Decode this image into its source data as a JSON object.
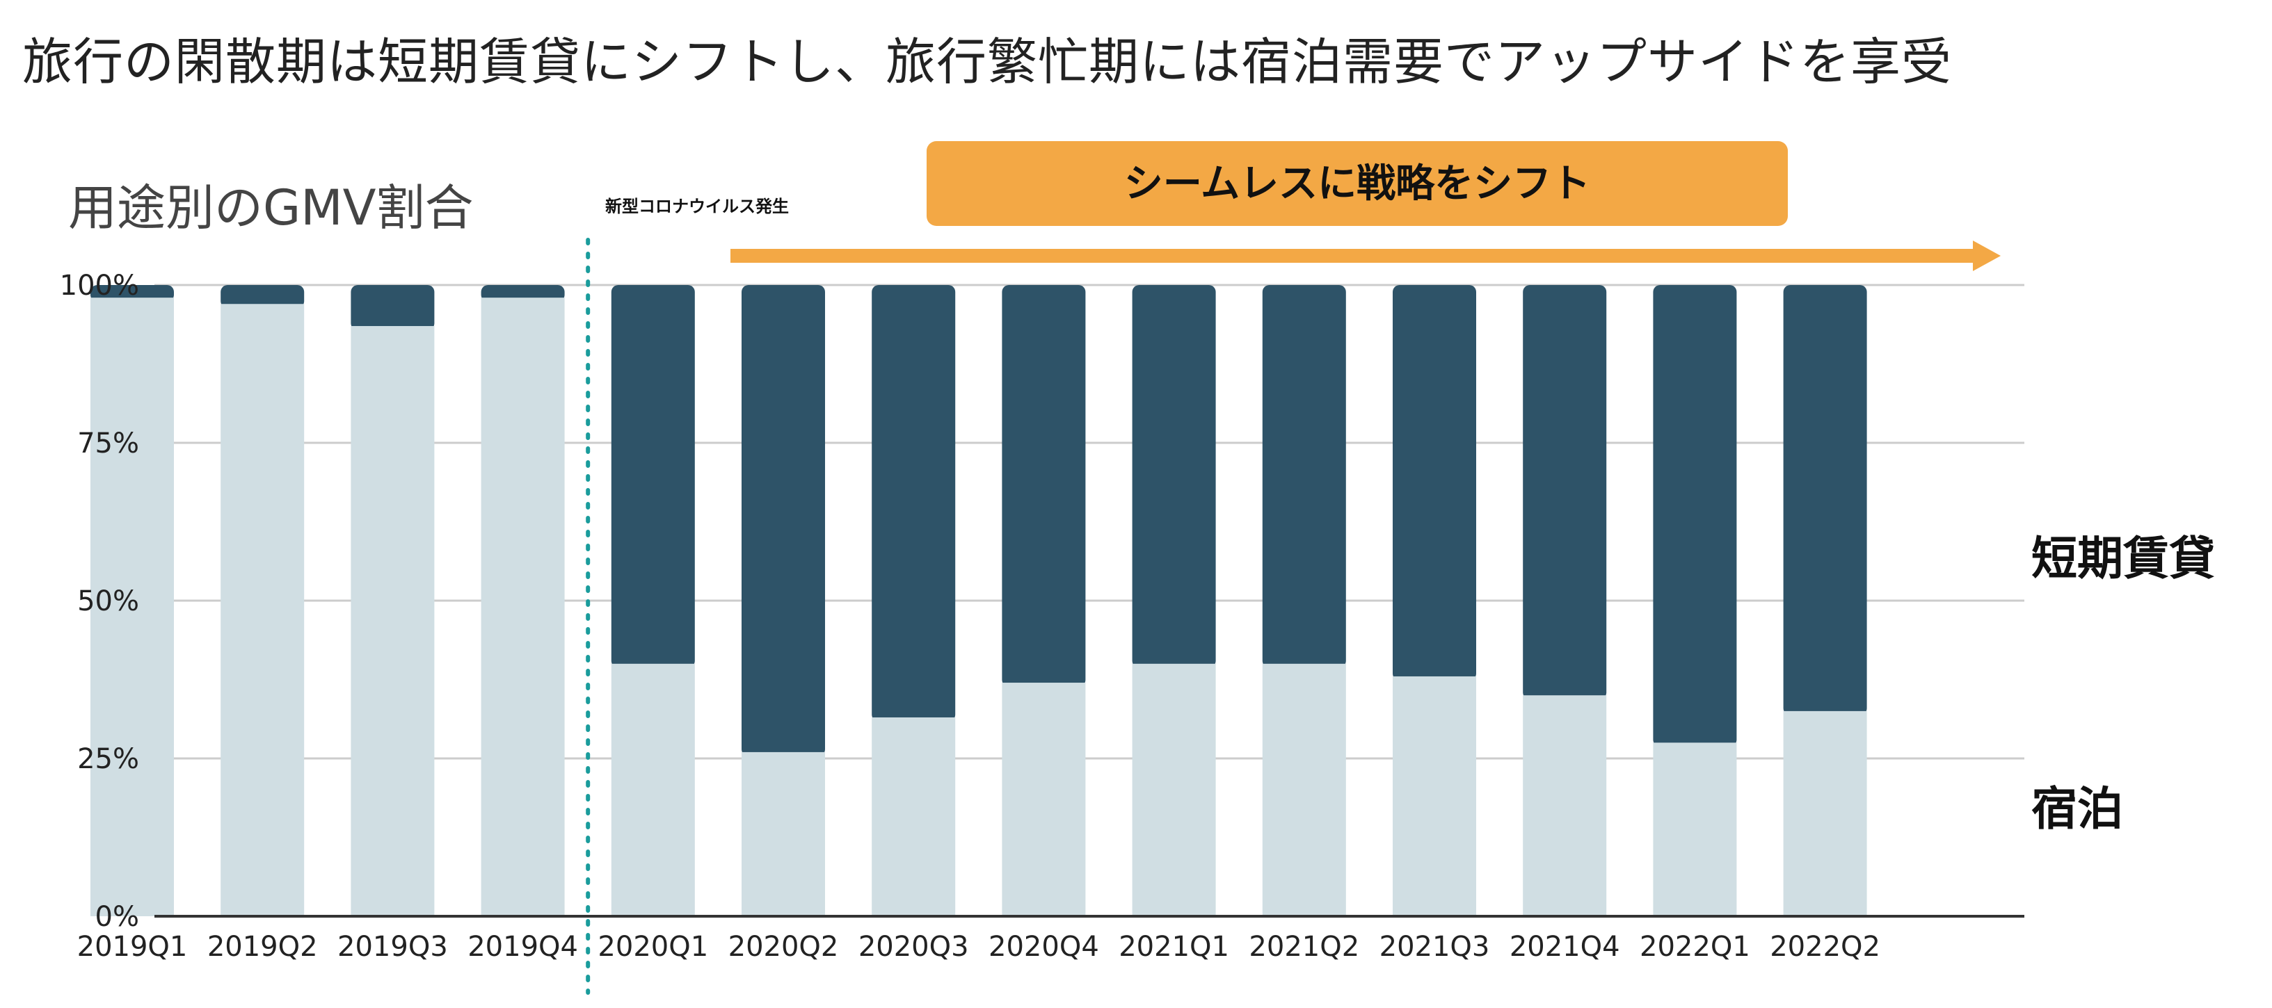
{
  "page": {
    "title": "旅行の閑散期は短期賃貸にシフトし、旅行繁忙期には宿泊需要でアップサイドを享受"
  },
  "banner": {
    "label": "シームレスに戦略をシフト",
    "color": "#F3A845"
  },
  "event": {
    "label": "新型コロナウイルス発生",
    "color": "#1A9C9C"
  },
  "colors": {
    "short_term_rental": "#2E5368",
    "lodging": "#D0DEE3",
    "grid": "#CCCCCC",
    "axis": "#333333"
  },
  "chart_data": {
    "type": "bar",
    "stacked": true,
    "title": "用途別のGMV割合",
    "xlabel": "",
    "ylabel": "",
    "ylim": [
      0,
      100
    ],
    "yticks": [
      0,
      25,
      50,
      75,
      100
    ],
    "ytick_labels": [
      "0%",
      "25%",
      "50%",
      "75%",
      "100%"
    ],
    "categories": [
      "2019Q1",
      "2019Q2",
      "2019Q3",
      "2019Q4",
      "2020Q1",
      "2020Q2",
      "2020Q3",
      "2020Q4",
      "2021Q1",
      "2021Q2",
      "2021Q3",
      "2021Q4",
      "2022Q1",
      "2022Q2"
    ],
    "series": [
      {
        "name": "宿泊",
        "values": [
          98,
          97,
          93.5,
          98,
          40,
          26,
          31.5,
          37,
          40,
          40,
          38,
          35,
          27.5,
          32.5
        ]
      },
      {
        "name": "短期賃貸",
        "values": [
          2,
          3,
          6.5,
          2,
          60,
          74,
          68.5,
          63,
          60,
          60,
          62,
          65,
          72.5,
          67.5
        ]
      }
    ],
    "legend": [
      "短期賃貸",
      "宿泊"
    ],
    "legend_placement": "right",
    "annotation_after_category": "2019Q4"
  }
}
